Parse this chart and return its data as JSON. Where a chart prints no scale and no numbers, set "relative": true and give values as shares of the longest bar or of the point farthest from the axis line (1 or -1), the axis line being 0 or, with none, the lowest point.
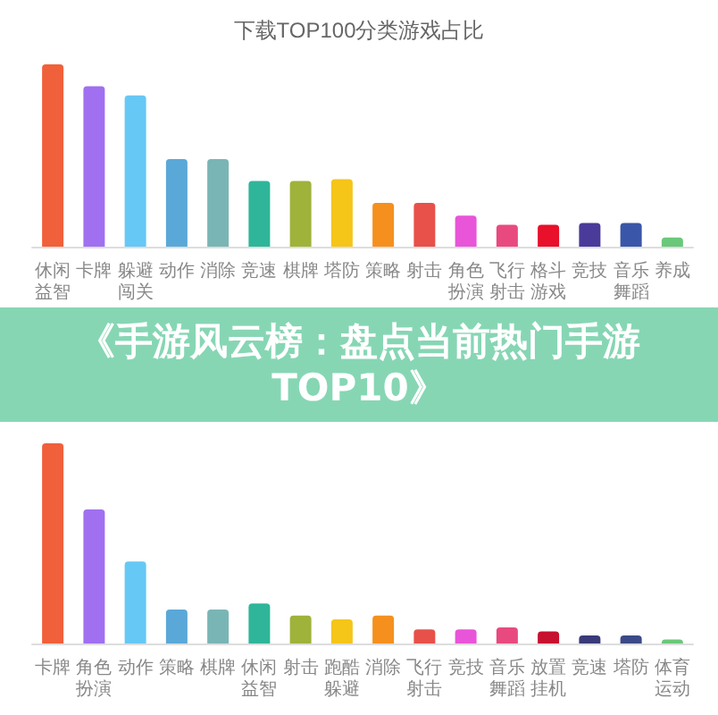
{
  "chart_data": [
    {
      "type": "bar",
      "title": "下载TOP100分类游戏占比",
      "relative": true,
      "categories": [
        "休闲益智",
        "卡牌",
        "躲避闯关",
        "动作",
        "消除",
        "竞速",
        "棋牌",
        "塔防",
        "策略",
        "射击",
        "角色扮演",
        "飞行射击",
        "格斗游戏",
        "竞技",
        "音乐舞蹈",
        "养成"
      ],
      "values": [
        1,
        0.88,
        0.83,
        0.48,
        0.48,
        0.36,
        0.36,
        0.37,
        0.24,
        0.24,
        0.17,
        0.12,
        0.12,
        0.13,
        0.13,
        0.05
      ],
      "colors": [
        "#f0603a",
        "#a070f0",
        "#66c8f5",
        "#5aa8d8",
        "#7ab5b5",
        "#2fb59a",
        "#9fb23a",
        "#f5c518",
        "#f5901e",
        "#e8504a",
        "#e855d8",
        "#e84a80",
        "#e8102a",
        "#4a3a9a",
        "#3a56a8",
        "#6ac87a"
      ]
    },
    {
      "type": "bar",
      "title": "《手游风云榜：盘点当前热门手游TOP10》",
      "relative": true,
      "categories": [
        "卡牌",
        "角色扮演",
        "动作",
        "策略",
        "棋牌",
        "休闲益智",
        "射击",
        "跑酷躲避",
        "消除",
        "飞行射击",
        "竞技",
        "音乐舞蹈",
        "放置挂机",
        "竞速",
        "塔防",
        "体育运动"
      ],
      "values": [
        1,
        0.67,
        0.41,
        0.17,
        0.17,
        0.2,
        0.14,
        0.12,
        0.14,
        0.07,
        0.07,
        0.08,
        0.06,
        0.04,
        0.04,
        0.02
      ],
      "colors": [
        "#f0603a",
        "#a070f0",
        "#66c8f5",
        "#5aa8d8",
        "#7ab5b5",
        "#2fb59a",
        "#9fb23a",
        "#f5c518",
        "#f5901e",
        "#e8504a",
        "#e855d8",
        "#e84a80",
        "#c81030",
        "#3a3a7a",
        "#3a4a88",
        "#6ac87a"
      ]
    }
  ]
}
